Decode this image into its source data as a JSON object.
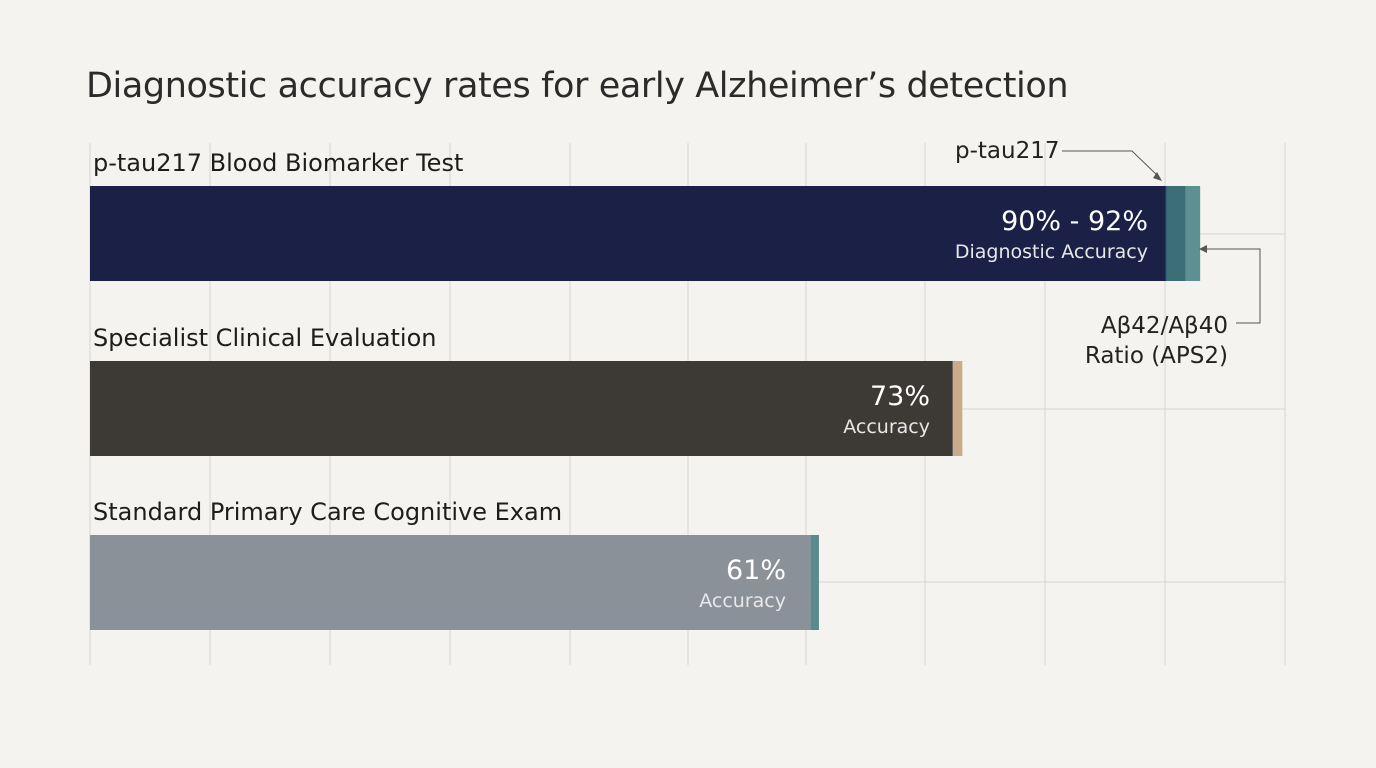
{
  "chart_data": {
    "type": "bar",
    "orientation": "horizontal",
    "title": "Diagnostic accuracy rates for early Alzheimer’s detection",
    "xlim": [
      0,
      100
    ],
    "grid": true,
    "categories": [
      "p-tau217 Blood Biomarker Test",
      "Specialist Clinical Evaluation",
      "Standard Primary Care Cognitive Exam"
    ],
    "bars": [
      {
        "label": "p-tau217 Blood Biomarker Test",
        "value": 90,
        "segments": [
          {
            "value": 90,
            "color": "#1b2046"
          },
          {
            "value": 0.2,
            "color": "#2e5f70"
          },
          {
            "value": 1.5,
            "color": "#3c6e78"
          },
          {
            "value": 1.2,
            "color": "#5e8f92"
          }
        ],
        "value_text": "90% - 92%",
        "sub_text": "Diagnostic Accuracy"
      },
      {
        "label": "Specialist Clinical Evaluation",
        "value": 73,
        "segments": [
          {
            "value": 72.2,
            "color": "#3d3a36"
          },
          {
            "value": 0.8,
            "color": "#c9aa8a"
          }
        ],
        "value_text": "73%",
        "sub_text": "Accuracy"
      },
      {
        "label": "Standard Primary Care Cognitive Exam",
        "value": 61,
        "segments": [
          {
            "value": 60.3,
            "color": "#8a9199"
          },
          {
            "value": 0.7,
            "color": "#5a8a8c"
          }
        ],
        "value_text": "61%",
        "sub_text": "Accuracy"
      }
    ],
    "annotations": [
      {
        "text": "p-tau217"
      },
      {
        "text_lines": [
          "Aβ42/Aβ40",
          "Ratio (APS2)"
        ]
      }
    ]
  }
}
